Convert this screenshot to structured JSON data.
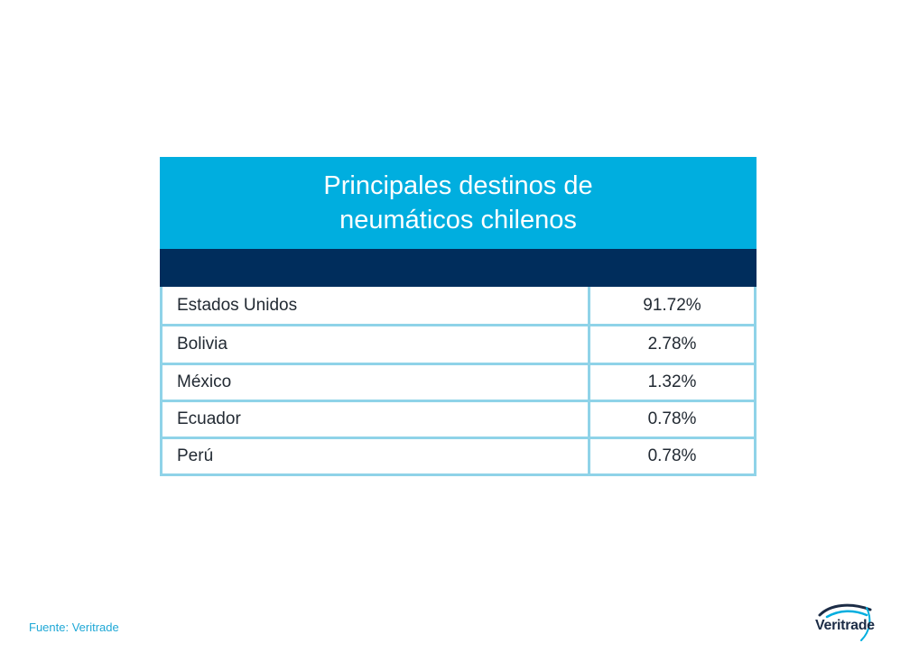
{
  "chart_data": {
    "type": "table",
    "title_lines": [
      "Principales destinos de",
      "neumáticos chilenos"
    ],
    "rows": [
      {
        "country": "Estados Unidos",
        "value": "91.72%"
      },
      {
        "country": "Bolivia",
        "value": "2.78%"
      },
      {
        "country": "México",
        "value": "1.32%"
      },
      {
        "country": "Ecuador",
        "value": "0.78%"
      },
      {
        "country": "Perú",
        "value": "0.78%"
      }
    ],
    "colors": {
      "title_band": "#00aedf",
      "header_band": "#002d5c",
      "grid": "#8fd3e8"
    }
  },
  "footer": {
    "source": "Fuente: Veritrade",
    "logo_text": "Veritrade"
  }
}
